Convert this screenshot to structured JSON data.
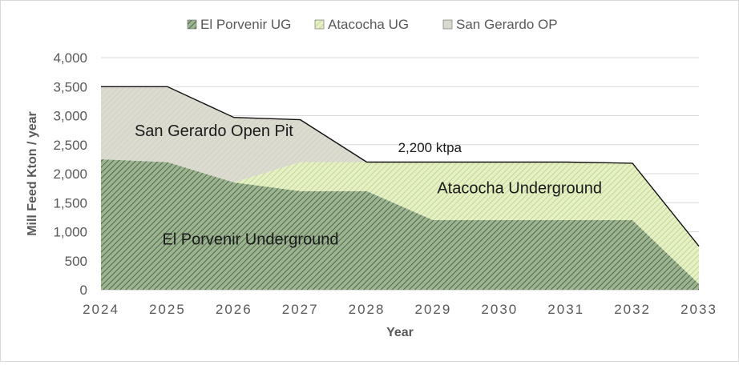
{
  "chart_data": {
    "type": "area",
    "stacked": true,
    "title": "",
    "xlabel": "Year",
    "ylabel": "Mill Feed Kton / year",
    "x": [
      2024,
      2025,
      2026,
      2027,
      2028,
      2029,
      2030,
      2031,
      2032,
      2033
    ],
    "ylim": [
      0,
      4000
    ],
    "yticks": [
      0,
      500,
      1000,
      1500,
      2000,
      2500,
      3000,
      3500,
      4000
    ],
    "ytick_labels": [
      "0",
      "500",
      "1,000",
      "1,500",
      "2,000",
      "2,500",
      "3,000",
      "3,500",
      "4,000"
    ],
    "xtick_labels": [
      "2024",
      "2025",
      "2026",
      "2027",
      "2028",
      "2029",
      "2030",
      "2031",
      "2032",
      "2033"
    ],
    "grid": true,
    "legend_position": "top-center",
    "series": [
      {
        "name": "El Porvenir UG",
        "color": "#7a9a6f",
        "values": [
          2250,
          2200,
          1850,
          1700,
          1700,
          1200,
          1200,
          1200,
          1200,
          100
        ]
      },
      {
        "name": "Atacocha UG",
        "color": "#d6e7a8",
        "values": [
          0,
          0,
          0,
          500,
          500,
          1000,
          1000,
          1000,
          980,
          650
        ]
      },
      {
        "name": "San Gerardo OP",
        "color": "#d7d6c9",
        "values": [
          1250,
          1300,
          1120,
          730,
          0,
          0,
          0,
          0,
          0,
          0
        ]
      }
    ],
    "annotations": [
      {
        "text": "San Gerardo Open Pit",
        "x": 2025.7,
        "y": 2650
      },
      {
        "text": "2,200 ktpa",
        "x": 2028.95,
        "y": 2370
      },
      {
        "text": "Atacocha Underground",
        "x": 2030.3,
        "y": 1660
      },
      {
        "text": "El Porvenir Underground",
        "x": 2026.25,
        "y": 780
      }
    ]
  }
}
